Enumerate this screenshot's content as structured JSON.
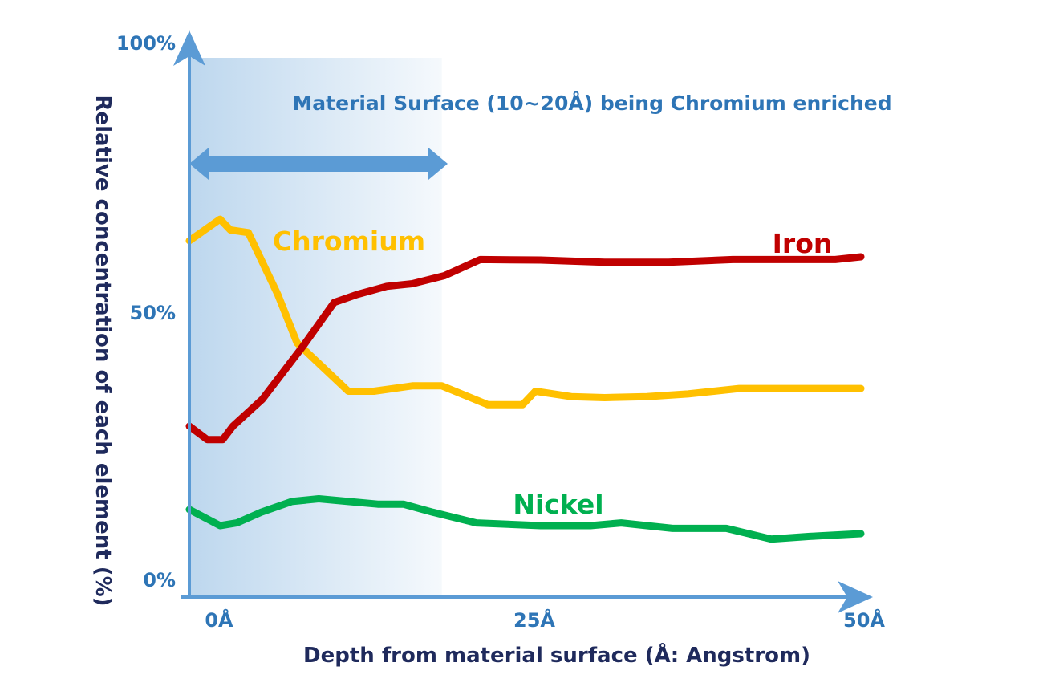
{
  "chart_data": {
    "type": "line",
    "xlabel": "Depth from material surface (Å: Angstrom)",
    "ylabel": "Relative concentration of each element (%)",
    "x_ticks": [
      {
        "value": 0,
        "label": "0Å"
      },
      {
        "value": 25,
        "label": "25Å"
      },
      {
        "value": 50,
        "label": "50Å"
      }
    ],
    "y_ticks": [
      {
        "value": 0,
        "label": "0%"
      },
      {
        "value": 50,
        "label": "50%"
      },
      {
        "value": 100,
        "label": "100%"
      }
    ],
    "xlim": [
      -2.4,
      50
    ],
    "ylim": [
      0,
      100
    ],
    "annotation": "Material Surface (10~20Å) being Chromium enriched",
    "highlight_region": [
      -2.4,
      17.3
    ],
    "colors": {
      "axis": "#5B9BD5",
      "region": "#BDD7EE",
      "arrow": "#5B9BD5",
      "Iron": "#C00000",
      "Chromium": "#FFC000",
      "Nickel": "#00B050"
    },
    "series": [
      {
        "name": "Chromium",
        "x": [
          -2.4,
          0,
          0.8,
          2.2,
          4.5,
          6,
          8,
          10,
          12,
          15,
          17.3,
          20.9,
          23.6,
          24.6,
          27.4,
          30,
          33.3,
          36.5,
          40.5,
          43,
          50
        ],
        "y": [
          63,
          67,
          65,
          64.5,
          53,
          44,
          39.5,
          35,
          35,
          36,
          36,
          32.5,
          32.5,
          35,
          34,
          33.8,
          34,
          34.5,
          35.5,
          35.5,
          35.5
        ]
      },
      {
        "name": "Iron",
        "x": [
          -2.4,
          -1,
          0.2,
          1,
          3.3,
          6.5,
          8.9,
          10.7,
          13,
          15,
          17.5,
          20.3,
          25,
          30,
          35,
          40,
          45,
          48,
          50
        ],
        "y": [
          28.5,
          26,
          26,
          28.5,
          33.5,
          43.5,
          51.5,
          53,
          54.5,
          55,
          56.5,
          59.5,
          59.4,
          59,
          59,
          59.5,
          59.5,
          59.5,
          60
        ]
      },
      {
        "name": "Nickel",
        "x": [
          -2.4,
          0,
          1.3,
          3.2,
          5.6,
          7.7,
          10,
          12.3,
          14.3,
          16.6,
          20,
          25,
          28.9,
          31.3,
          35.3,
          39.5,
          43,
          46,
          50
        ],
        "y": [
          13,
          10,
          10.5,
          12.5,
          14.5,
          15,
          14.5,
          14,
          14,
          12.5,
          10.5,
          10,
          10,
          10.5,
          9.5,
          9.5,
          7.5,
          8,
          8.5
        ]
      }
    ]
  }
}
